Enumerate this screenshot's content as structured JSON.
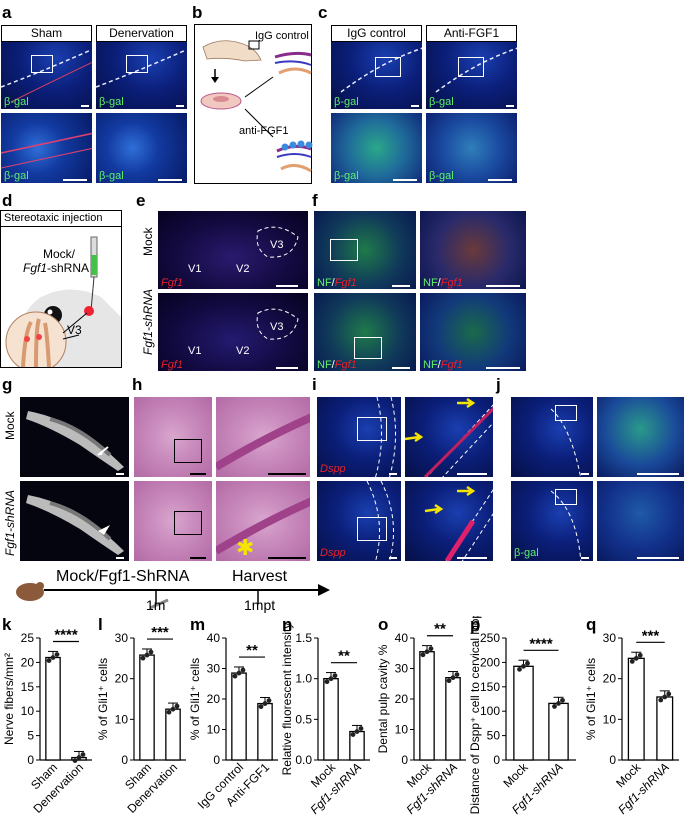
{
  "panel_letters": [
    "a",
    "b",
    "c",
    "d",
    "e",
    "f",
    "g",
    "h",
    "i",
    "j",
    "k",
    "l",
    "m",
    "n",
    "o",
    "p",
    "q"
  ],
  "a": {
    "headers": [
      "Sham",
      "Denervation"
    ],
    "stain": "β-gal"
  },
  "b": {
    "igg": "IgG control",
    "anti": "anti-FGF1"
  },
  "c": {
    "headers": [
      "IgG control",
      "Anti-FGF1"
    ],
    "stain": "β-gal"
  },
  "d": {
    "title": "Stereotaxic injection",
    "inj_line1": "Mock/",
    "inj_line2_italic": "Fgf1",
    "inj_line2_rest": "-shRNA",
    "target": "V3"
  },
  "e": {
    "rows": [
      "Mock",
      "Fgf1-shRNA"
    ],
    "regions": [
      "V1",
      "V2",
      "V3"
    ],
    "stain": "Fgf1"
  },
  "f": {
    "stain_nf": "NF",
    "stain_slash": "/",
    "stain_fgf": "Fgf1"
  },
  "g": {
    "rows": [
      "Mock",
      "Fgf1-shRNA"
    ]
  },
  "i": {
    "stain": "Dspp"
  },
  "j": {
    "stain": "β-gal"
  },
  "timeline": {
    "label": "Mock/Fgf1-ShRNA",
    "harvest": "Harvest",
    "t1": "1m",
    "t2": "1mpt"
  },
  "chart_data": [
    {
      "panel": "k",
      "type": "bar",
      "categories": [
        "Sham",
        "Denervation"
      ],
      "values": [
        21,
        0.5
      ],
      "ylabel": "Nerve fibers/mm²",
      "ylim": [
        0,
        25
      ],
      "yticks": [
        0,
        5,
        10,
        15,
        20,
        25
      ],
      "sig": "****"
    },
    {
      "panel": "l",
      "type": "bar",
      "categories": [
        "Sham",
        "Denervation"
      ],
      "values": [
        25.8,
        12.5
      ],
      "ylabel": "% of Gli1⁺ cells",
      "ylim": [
        0,
        30
      ],
      "yticks": [
        0,
        10,
        20,
        30
      ],
      "sig": "***"
    },
    {
      "panel": "m",
      "type": "bar",
      "categories": [
        "IgG control",
        "Anti-FGF1"
      ],
      "values": [
        28.5,
        18.5
      ],
      "ylabel": "% of Gli1⁺ cells",
      "ylim": [
        0,
        40
      ],
      "yticks": [
        0,
        10,
        20,
        30,
        40
      ],
      "sig": "**"
    },
    {
      "panel": "n",
      "type": "bar",
      "categories": [
        "Mock",
        "Fgf1-shRNA"
      ],
      "values": [
        1.0,
        0.35
      ],
      "ylabel": "Relative fluorescent intensity",
      "ylim": [
        0,
        1.5
      ],
      "yticks": [
        0.0,
        0.5,
        1.0,
        1.5
      ],
      "sig": "**"
    },
    {
      "panel": "o",
      "type": "bar",
      "categories": [
        "Mock",
        "Fgf1-shRNA"
      ],
      "values": [
        35.5,
        27
      ],
      "ylabel": "Dental pulp cavity %",
      "ylim": [
        0,
        40
      ],
      "yticks": [
        0,
        10,
        20,
        30,
        40
      ],
      "sig": "**"
    },
    {
      "panel": "p",
      "type": "bar",
      "categories": [
        "Mock",
        "Fgf1-shRNA"
      ],
      "values": [
        192,
        116
      ],
      "ylabel": "Distance of Dspp⁺ cell to cervical loop (μm)",
      "ylim": [
        0,
        250
      ],
      "yticks": [
        0,
        50,
        100,
        150,
        200,
        250
      ],
      "sig": "****"
    },
    {
      "panel": "q",
      "type": "bar",
      "categories": [
        "Mock",
        "Fgf1-shRNA"
      ],
      "values": [
        25,
        15.5
      ],
      "ylabel": "% of Gli1⁺ cells",
      "ylim": [
        0,
        30
      ],
      "yticks": [
        0,
        10,
        20,
        30
      ],
      "sig": "***"
    }
  ]
}
